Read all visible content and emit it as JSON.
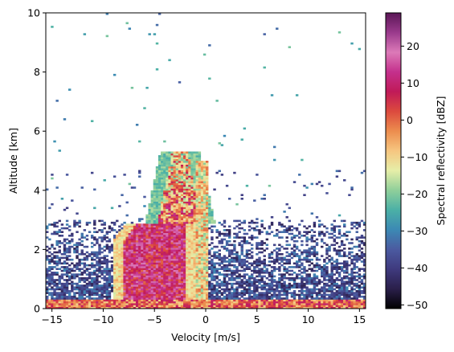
{
  "chart_data": {
    "type": "heatmap",
    "title": "",
    "xlabel": "Velocity [m/s]",
    "ylabel": "Altitude [km]",
    "xlim": [
      -15.6,
      15.6
    ],
    "ylim": [
      0,
      10
    ],
    "xticks": [
      -15,
      -10,
      -5,
      0,
      5,
      10,
      15
    ],
    "yticks": [
      0,
      2,
      4,
      6,
      8,
      10
    ],
    "colorbar": {
      "label": "Spectral reflectivity [dBZ]",
      "range": [
        -51,
        29
      ],
      "ticks": [
        -50,
        -40,
        -30,
        -20,
        -10,
        0,
        10,
        20
      ],
      "colormap": [
        "#000000",
        "#2a1f4a",
        "#3f3a7e",
        "#4b5aa0",
        "#3c89b4",
        "#4bb0a6",
        "#8fcf9a",
        "#e6eea8",
        "#f6c680",
        "#ec8d4e",
        "#dc4a3e",
        "#c01a58",
        "#c4308c",
        "#dc7ab8",
        "#9a3a8c",
        "#5a1656"
      ]
    },
    "regions": [
      {
        "name": "background clutter",
        "x": [
          -15.6,
          15.6
        ],
        "alt": [
          0.1,
          3.0
        ],
        "dbz_range": [
          -45,
          -30
        ]
      },
      {
        "name": "main precipitation echo",
        "x": [
          -9,
          -1
        ],
        "alt": [
          0.2,
          2.9
        ],
        "dbz_range": [
          0,
          20
        ]
      },
      {
        "name": "upper echo tower",
        "x": [
          -5,
          -1
        ],
        "alt": [
          2.9,
          5.3
        ],
        "dbz_range": [
          -15,
          15
        ]
      },
      {
        "name": "near-zero velocity ridge",
        "x": [
          -1,
          0.3
        ],
        "alt": [
          0.2,
          5.0
        ],
        "dbz_range": [
          -20,
          0
        ]
      },
      {
        "name": "surface band",
        "x": [
          -15.6,
          15.6
        ],
        "alt": [
          0,
          0.3
        ],
        "dbz_range": [
          -10,
          10
        ]
      }
    ]
  }
}
